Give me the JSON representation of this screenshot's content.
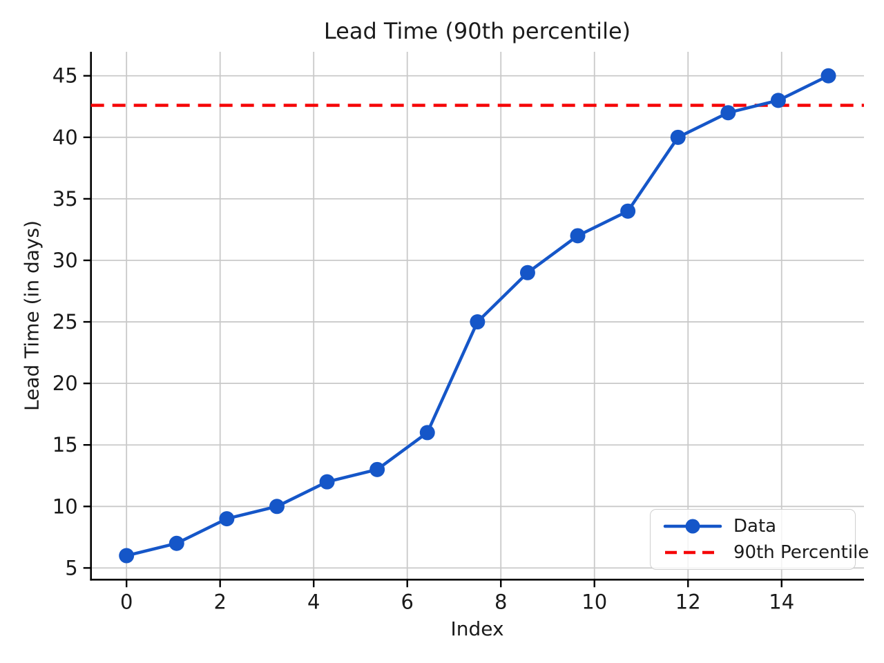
{
  "figure": {
    "background": "#ffffff"
  },
  "chart_data": {
    "type": "line",
    "title": "Lead Time (90th percentile)",
    "xlabel": "Index",
    "ylabel": "Lead Time (in days)",
    "series": [
      {
        "name": "Data",
        "x": [
          0,
          1.0714,
          2.1429,
          3.2143,
          4.2857,
          5.3571,
          6.4286,
          7.5,
          8.5714,
          9.6429,
          10.7143,
          11.7857,
          12.8571,
          13.9286,
          15
        ],
        "y": [
          6,
          7,
          9,
          10,
          12,
          13,
          16,
          25,
          29,
          32,
          34,
          40,
          42,
          43,
          45
        ],
        "color": "#1556c8",
        "style": "solid",
        "marker": "circle"
      },
      {
        "name": "90th Percentile",
        "type": "hline",
        "y": 42.6,
        "color": "#f50406",
        "style": "dashed"
      }
    ],
    "xlim": [
      -0.76,
      15.76
    ],
    "ylim": [
      4.05,
      46.95
    ],
    "xticks": [
      0,
      2,
      4,
      6,
      8,
      10,
      12,
      14
    ],
    "yticks": [
      5,
      10,
      15,
      20,
      25,
      30,
      35,
      40,
      45
    ],
    "grid": true,
    "grid_color": "#c9c9c9",
    "axis_color": "#000000",
    "tick_label_color": "#1a1a1a",
    "legend": {
      "position": "lower right",
      "entries": [
        {
          "label": "Data",
          "color": "#1556c8",
          "glyph": "line-marker"
        },
        {
          "label": "90th Percentile",
          "color": "#f50406",
          "glyph": "dashed-line"
        }
      ]
    }
  }
}
